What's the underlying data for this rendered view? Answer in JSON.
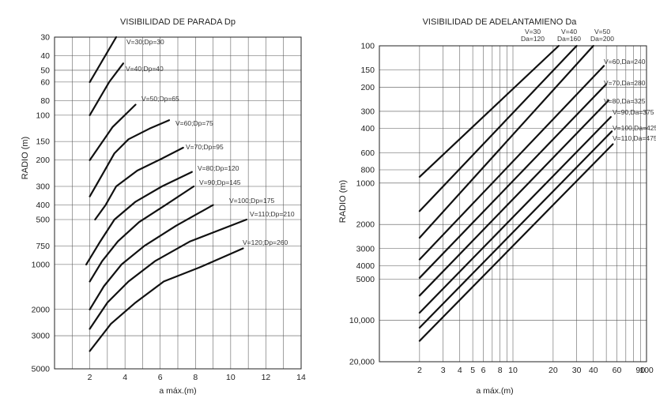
{
  "chart_data": [
    {
      "type": "line",
      "title": "VISIBILIDAD DE PARADA Dp",
      "xlabel": "a máx.(m)",
      "ylabel": "RADIO (m)",
      "x_scale": "linear",
      "y_scale": "log",
      "y_inverted": true,
      "xlim": [
        0,
        14
      ],
      "ylim": [
        30,
        5000
      ],
      "grid": true,
      "x_ticks": [
        "2",
        "4",
        "6",
        "8",
        "10",
        "12",
        "14"
      ],
      "x_tick_values": [
        2,
        4,
        6,
        8,
        10,
        12,
        14
      ],
      "y_ticks": [
        "30",
        "40",
        "50",
        "60",
        "80",
        "100",
        "150",
        "200",
        "300",
        "400",
        "500",
        "750",
        "1000",
        "2000",
        "3000",
        "5000"
      ],
      "y_tick_values": [
        30,
        40,
        50,
        60,
        80,
        100,
        150,
        200,
        300,
        400,
        500,
        750,
        1000,
        2000,
        3000,
        5000
      ],
      "series": [
        {
          "name": "V=30;Dp=30",
          "x": [
            2.0,
            3.5
          ],
          "y": [
            60,
            30
          ]
        },
        {
          "name": "V=40;Dp=40",
          "x": [
            2.0,
            3.1,
            3.9
          ],
          "y": [
            100,
            60,
            45
          ]
        },
        {
          "name": "V=50;Dp=65",
          "x": [
            2.0,
            3.3,
            4.6
          ],
          "y": [
            200,
            120,
            85
          ]
        },
        {
          "name": "V=60;Dp=75",
          "x": [
            2.0,
            2.8,
            3.4,
            4.2,
            5.4,
            6.5
          ],
          "y": [
            350,
            240,
            180,
            145,
            123,
            108
          ]
        },
        {
          "name": "V=70;Dp=95",
          "x": [
            2.3,
            2.9,
            3.5,
            4.7,
            6.1,
            7.3
          ],
          "y": [
            500,
            400,
            300,
            235,
            195,
            165
          ]
        },
        {
          "name": "V=80;Dp=120",
          "x": [
            1.8,
            2.6,
            3.4,
            4.6,
            6.1,
            7.8
          ],
          "y": [
            1000,
            700,
            500,
            380,
            300,
            240
          ]
        },
        {
          "name": "V=90;Dp=145",
          "x": [
            2.0,
            2.7,
            3.6,
            4.8,
            6.3,
            7.9
          ],
          "y": [
            1300,
            950,
            700,
            520,
            400,
            300
          ]
        },
        {
          "name": "V=100;Dp=175",
          "x": [
            2.0,
            2.8,
            3.8,
            5.1,
            6.9,
            9.0
          ],
          "y": [
            2000,
            1400,
            1000,
            750,
            550,
            400
          ]
        },
        {
          "name": "V=110;Dp=210",
          "x": [
            2.0,
            3.0,
            4.2,
            5.7,
            7.7,
            10.9
          ],
          "y": [
            2700,
            1800,
            1300,
            950,
            700,
            500
          ]
        },
        {
          "name": "V=120;Dp=260",
          "x": [
            2.0,
            3.2,
            4.6,
            6.2,
            8.2,
            10.7
          ],
          "y": [
            3800,
            2500,
            1800,
            1300,
            1050,
            780
          ]
        }
      ]
    },
    {
      "type": "line",
      "title": "VISIBILIDAD DE ADELANTAMIENO Da",
      "xlabel": "a máx.(m)",
      "ylabel": "RADIO (m)",
      "x_scale": "log",
      "y_scale": "log",
      "y_inverted": true,
      "xlim": [
        1,
        100
      ],
      "ylim": [
        100,
        20000
      ],
      "grid": true,
      "x_ticks": [
        "2",
        "3",
        "4",
        "5",
        "6",
        "8",
        "10",
        "20",
        "30",
        "40",
        "60",
        "90",
        "100"
      ],
      "x_tick_values": [
        2,
        3,
        4,
        5,
        6,
        8,
        10,
        20,
        30,
        40,
        60,
        90,
        100
      ],
      "y_ticks": [
        "100",
        "150",
        "200",
        "300",
        "400",
        "600",
        "800",
        "1000",
        "2000",
        "3000",
        "4000",
        "5000",
        "10,000",
        "20,000"
      ],
      "y_tick_values": [
        100,
        150,
        200,
        300,
        400,
        600,
        800,
        1000,
        2000,
        3000,
        4000,
        5000,
        10000,
        20000
      ],
      "series": [
        {
          "name": "V=30 Da=120",
          "x": [
            2,
            22
          ],
          "y": [
            900,
            100
          ]
        },
        {
          "name": "V=40 Da=160",
          "x": [
            2,
            30
          ],
          "y": [
            1600,
            100
          ]
        },
        {
          "name": "V=50 Da=200",
          "x": [
            2,
            40
          ],
          "y": [
            2500,
            100
          ]
        },
        {
          "name": "V=60,Da=240",
          "x": [
            2,
            48
          ],
          "y": [
            3600,
            140
          ]
        },
        {
          "name": "V=70,Da=280",
          "x": [
            2,
            50
          ],
          "y": [
            4900,
            190
          ]
        },
        {
          "name": "V=80,Da=325",
          "x": [
            2,
            52
          ],
          "y": [
            6600,
            250
          ]
        },
        {
          "name": "V=90,Da=375",
          "x": [
            2,
            54
          ],
          "y": [
            8800,
            330
          ]
        },
        {
          "name": "V=100,Da=425",
          "x": [
            2,
            55
          ],
          "y": [
            11300,
            420
          ]
        },
        {
          "name": "V=110,Da=475",
          "x": [
            2,
            56
          ],
          "y": [
            14100,
            520
          ]
        }
      ]
    }
  ],
  "left_labels": {
    "l0": "V=30;Dp=30",
    "l1": "V=40;Dp=40",
    "l2": "V=50;Dp=65",
    "l3": "V=60;Dp=75",
    "l4": "V=70;Dp=95",
    "l5": "V=80;Dp=120",
    "l6": "V=90;Dp=145",
    "l7": "V=100;Dp=175",
    "l8": "V=110;Dp=210",
    "l9": "V=120;Dp=260"
  },
  "right_labels": {
    "top_v30": "V=30",
    "top_d30": "Da=120",
    "top_v40": "V=40",
    "top_d40": "Da=160",
    "top_v50": "V=50",
    "top_d50": "Da=200",
    "r3": "V=60,Da=240",
    "r4": "V=70,Da=280",
    "r5": "V=80,Da=325",
    "r6": "V=90,Da=375",
    "r7": "V=100,Da=425",
    "r8": "V=110,Da=475"
  }
}
